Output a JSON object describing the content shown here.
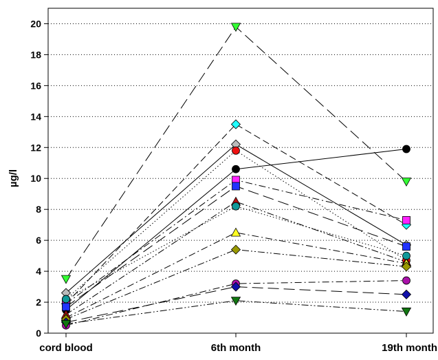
{
  "chart_data": {
    "type": "line",
    "title": "",
    "xlabel": "",
    "ylabel": "µg/l",
    "categories": [
      "cord blood",
      "6th month",
      "19th month"
    ],
    "ylim": [
      0,
      21
    ],
    "yticks": [
      0,
      2,
      4,
      6,
      8,
      10,
      12,
      14,
      16,
      18,
      20
    ],
    "grid": "horizontal dotted",
    "legend": "none",
    "series": [
      {
        "values": [
          3.5,
          19.8,
          9.8
        ],
        "marker": "triangle-down",
        "color": "#33ff33",
        "dash": "long-dash"
      },
      {
        "values": [
          1.9,
          13.5,
          7.0
        ],
        "marker": "diamond",
        "color": "#22ffff",
        "dash": "dash"
      },
      {
        "values": [
          2.6,
          12.2,
          5.7
        ],
        "marker": "diamond",
        "color": "#bbbbbb",
        "dash": "solid"
      },
      {
        "values": [
          2.2,
          11.8,
          4.7
        ],
        "marker": "circle",
        "color": "#ee1111",
        "dash": "dot"
      },
      {
        "values": [
          1.5,
          10.6,
          11.9
        ],
        "marker": "circle",
        "color": "#000000",
        "dash": "solid"
      },
      {
        "values": [
          1.9,
          9.9,
          7.3
        ],
        "marker": "square",
        "color": "#ff22ff",
        "dash": "dash-dot"
      },
      {
        "values": [
          1.7,
          9.5,
          5.6
        ],
        "marker": "square",
        "color": "#2233ff",
        "dash": "long-dash"
      },
      {
        "values": [
          1.2,
          8.5,
          4.6
        ],
        "marker": "triangle-up",
        "color": "#bb1111",
        "dash": "dash-dot-dot"
      },
      {
        "values": [
          2.2,
          8.2,
          5.0
        ],
        "marker": "circle",
        "color": "#119999",
        "dash": "dot"
      },
      {
        "values": [
          1.0,
          6.5,
          4.5
        ],
        "marker": "triangle-up",
        "color": "#ffff22",
        "dash": "dash-dot"
      },
      {
        "values": [
          0.9,
          5.4,
          4.3
        ],
        "marker": "diamond",
        "color": "#999900",
        "dash": "dash-dot-dot"
      },
      {
        "values": [
          0.5,
          3.2,
          3.4
        ],
        "marker": "circle",
        "color": "#aa11aa",
        "dash": "dash-dot"
      },
      {
        "values": [
          0.7,
          3.0,
          2.5
        ],
        "marker": "diamond",
        "color": "#1111aa",
        "dash": "long-dash"
      },
      {
        "values": [
          0.6,
          2.1,
          1.4
        ],
        "marker": "triangle-down",
        "color": "#117711",
        "dash": "dash-dot-dot"
      }
    ]
  }
}
